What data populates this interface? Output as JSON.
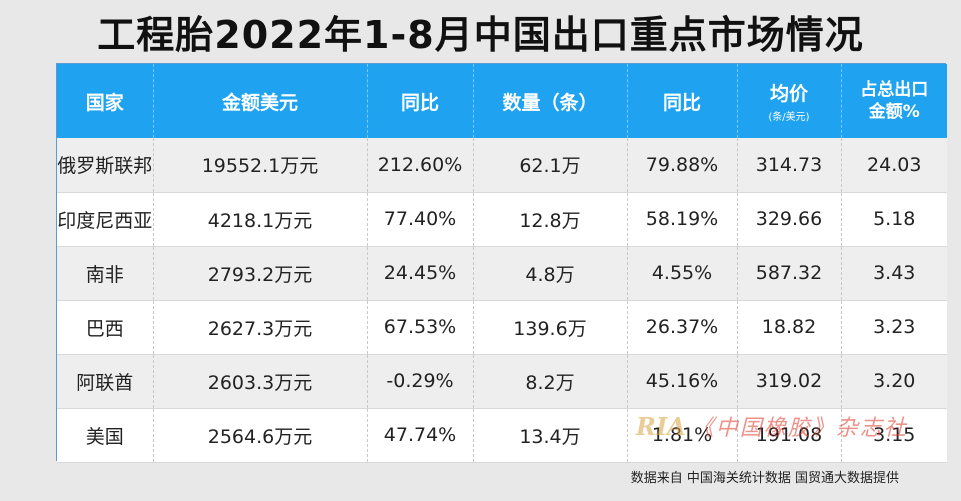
{
  "title": "工程胎2022年1-8月中国出口重点市场情况",
  "table": {
    "headers": {
      "country": "国家",
      "amount": "金额美元",
      "yoy1": "同比",
      "qty": "数量（条）",
      "yoy2": "同比",
      "price": "均价",
      "price_unit": "(条/美元)",
      "share_line1": "占总出口",
      "share_line2": "金额%"
    },
    "rows": [
      {
        "country": "俄罗斯联邦",
        "amount": "19552.1万元",
        "yoy1": "212.60%",
        "qty": "62.1万",
        "yoy2": "79.88%",
        "price": "314.73",
        "share": "24.03"
      },
      {
        "country": "印度尼西亚",
        "amount": "4218.1万元",
        "yoy1": "77.40%",
        "qty": "12.8万",
        "yoy2": "58.19%",
        "price": "329.66",
        "share": "5.18"
      },
      {
        "country": "南非",
        "amount": "2793.2万元",
        "yoy1": "24.45%",
        "qty": "4.8万",
        "yoy2": "4.55%",
        "price": "587.32",
        "share": "3.43"
      },
      {
        "country": "巴西",
        "amount": "2627.3万元",
        "yoy1": "67.53%",
        "qty": "139.6万",
        "yoy2": "26.37%",
        "price": "18.82",
        "share": "3.23"
      },
      {
        "country": "阿联酋",
        "amount": "2603.3万元",
        "yoy1": "-0.29%",
        "qty": "8.2万",
        "yoy2": "45.16%",
        "price": "319.02",
        "share": "3.20"
      },
      {
        "country": "美国",
        "amount": "2564.6万元",
        "yoy1": "47.74%",
        "qty": "13.4万",
        "yoy2": "1.81%",
        "price": "191.08",
        "share": "3.15"
      }
    ]
  },
  "footer": "数据来自 中国海关统计数据 国贸通大数据提供",
  "watermark": {
    "logo": "RIA",
    "text": "《中国橡胶》杂志社"
  }
}
